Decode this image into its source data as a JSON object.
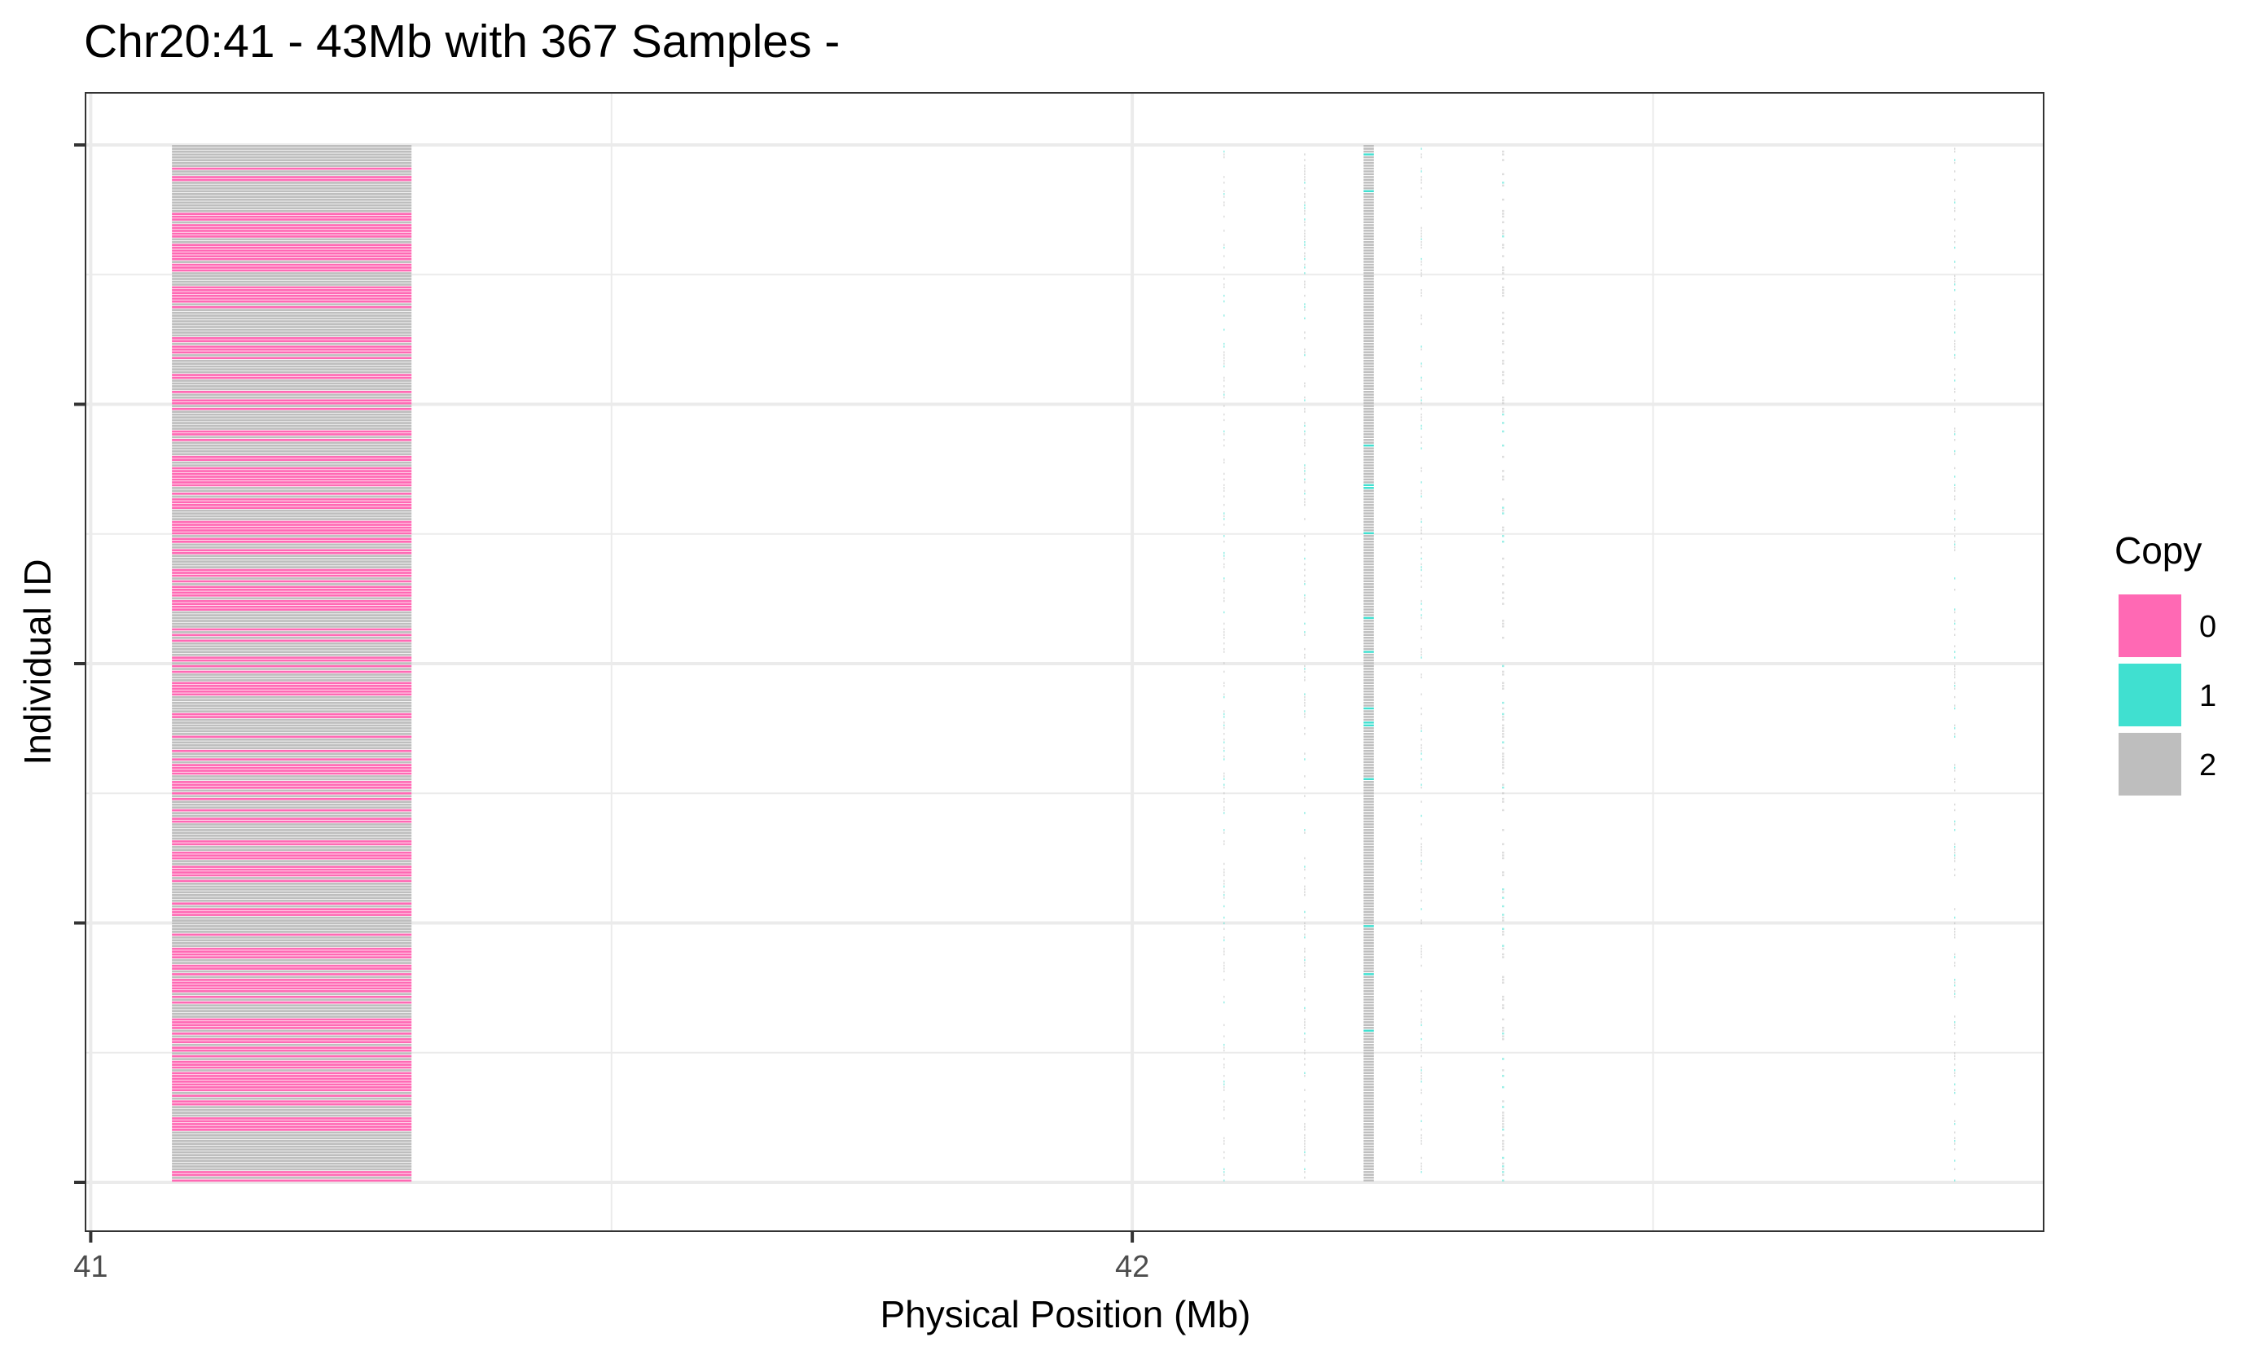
{
  "chart_data": {
    "type": "heatmap",
    "title": "Chr20:41 - 43Mb with 367 Samples -",
    "xlabel": "Physical Position (Mb)",
    "ylabel": "Individual ID",
    "xlim": [
      40.995,
      42.875
    ],
    "x_ticks": [
      {
        "value": 41,
        "label": "41"
      },
      {
        "value": 42,
        "label": "42"
      }
    ],
    "x_minor_gridlines": [
      41.5,
      42.5
    ],
    "n_samples": 367,
    "y_ticks_count": 4,
    "legend": {
      "title": "Copy",
      "position": "right",
      "entries": [
        {
          "label": "0",
          "color": "#ff69b4"
        },
        {
          "label": "1",
          "color": "#40e0d0"
        },
        {
          "label": "2",
          "color": "#bebebe"
        }
      ]
    },
    "segments": [
      {
        "x_start": 41.078,
        "x_end": 41.308,
        "pattern": "mixed_0_2",
        "name": "main-block"
      },
      {
        "x_start": 42.222,
        "x_end": 42.232,
        "pattern": "mostly_2",
        "name": "narrow-block"
      },
      {
        "x_start": 42.0875,
        "x_end": 42.0885,
        "pattern": "sparse",
        "name": "thin-line-1"
      },
      {
        "x_start": 42.165,
        "x_end": 42.166,
        "pattern": "sparse",
        "name": "thin-line-2"
      },
      {
        "x_start": 42.277,
        "x_end": 42.278,
        "pattern": "sparse",
        "name": "thin-line-3"
      },
      {
        "x_start": 42.355,
        "x_end": 42.357,
        "pattern": "sparse",
        "name": "thin-line-4"
      },
      {
        "x_start": 42.789,
        "x_end": 42.79,
        "pattern": "sparse",
        "name": "thin-line-5"
      }
    ]
  }
}
